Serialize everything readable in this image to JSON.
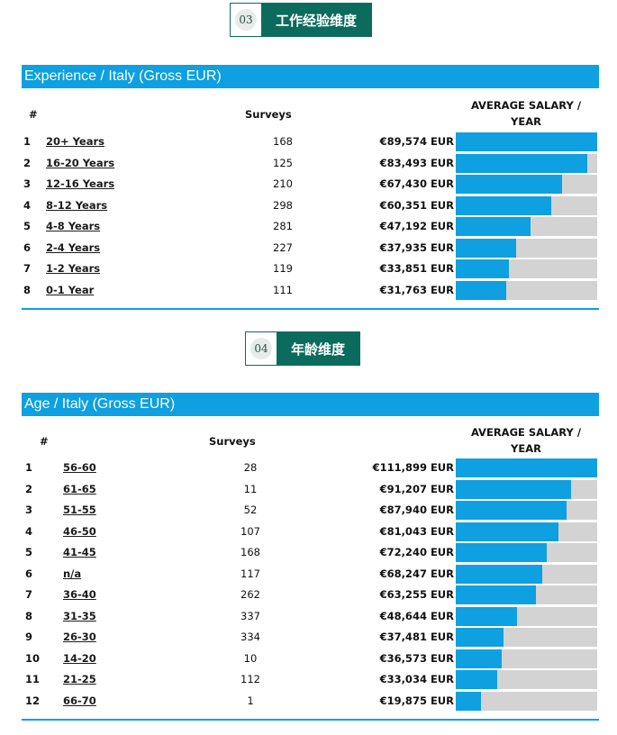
{
  "badges": [
    {
      "num": "03",
      "title": "工作经验维度"
    },
    {
      "num": "04",
      "title": "年龄维度"
    }
  ],
  "experience": {
    "header": "Experience / Italy (Gross EUR)",
    "col_rank": "#",
    "col_surveys": "Surveys",
    "col_avg_line1": "AVERAGE SALARY /",
    "col_avg_line2": "YEAR",
    "rows": [
      {
        "rank": "1",
        "label": "20+ Years",
        "surveys": "168",
        "salary": "€89,574 EUR",
        "share": 1.0
      },
      {
        "rank": "2",
        "label": "16-20 Years",
        "surveys": "125",
        "salary": "€83,493 EUR",
        "share": 0.932
      },
      {
        "rank": "3",
        "label": "12-16 Years",
        "surveys": "210",
        "salary": "€67,430 EUR",
        "share": 0.753
      },
      {
        "rank": "4",
        "label": "8-12 Years",
        "surveys": "298",
        "salary": "€60,351 EUR",
        "share": 0.674
      },
      {
        "rank": "5",
        "label": "4-8 Years",
        "surveys": "281",
        "salary": "€47,192 EUR",
        "share": 0.527
      },
      {
        "rank": "6",
        "label": "2-4 Years",
        "surveys": "227",
        "salary": "€37,935 EUR",
        "share": 0.424
      },
      {
        "rank": "7",
        "label": "1-2 Years",
        "surveys": "119",
        "salary": "€33,851 EUR",
        "share": 0.378
      },
      {
        "rank": "8",
        "label": "0-1 Year",
        "surveys": "111",
        "salary": "€31,763 EUR",
        "share": 0.355
      }
    ]
  },
  "age": {
    "header": "Age / Italy (Gross EUR)",
    "col_rank": "#",
    "col_surveys": "Surveys",
    "col_avg_line1": "AVERAGE SALARY /",
    "col_avg_line2": "YEAR",
    "rows": [
      {
        "rank": "1",
        "label": "56-60",
        "surveys": "28",
        "salary": "€111,899 EUR",
        "share": 1.0
      },
      {
        "rank": "2",
        "label": "61-65",
        "surveys": "11",
        "salary": "€91,207 EUR",
        "share": 0.815
      },
      {
        "rank": "3",
        "label": "51-55",
        "surveys": "52",
        "salary": "€87,940 EUR",
        "share": 0.786
      },
      {
        "rank": "4",
        "label": "46-50",
        "surveys": "107",
        "salary": "€81,043 EUR",
        "share": 0.724
      },
      {
        "rank": "5",
        "label": "41-45",
        "surveys": "168",
        "salary": "€72,240 EUR",
        "share": 0.646
      },
      {
        "rank": "6",
        "label": "n/a",
        "surveys": "117",
        "salary": "€68,247 EUR",
        "share": 0.61
      },
      {
        "rank": "7",
        "label": "36-40",
        "surveys": "262",
        "salary": "€63,255 EUR",
        "share": 0.565
      },
      {
        "rank": "8",
        "label": "31-35",
        "surveys": "337",
        "salary": "€48,644 EUR",
        "share": 0.435
      },
      {
        "rank": "9",
        "label": "26-30",
        "surveys": "334",
        "salary": "€37,481 EUR",
        "share": 0.335
      },
      {
        "rank": "10",
        "label": "14-20",
        "surveys": "10",
        "salary": "€36,573 EUR",
        "share": 0.327
      },
      {
        "rank": "11",
        "label": "21-25",
        "surveys": "112",
        "salary": "€33,034 EUR",
        "share": 0.295
      },
      {
        "rank": "12",
        "label": "66-70",
        "surveys": "1",
        "salary": "€19,875 EUR",
        "share": 0.178
      }
    ]
  },
  "colors": {
    "accent": "#0ea0e0",
    "badge": "#0b6b5c",
    "track": "#d3d3d3"
  }
}
